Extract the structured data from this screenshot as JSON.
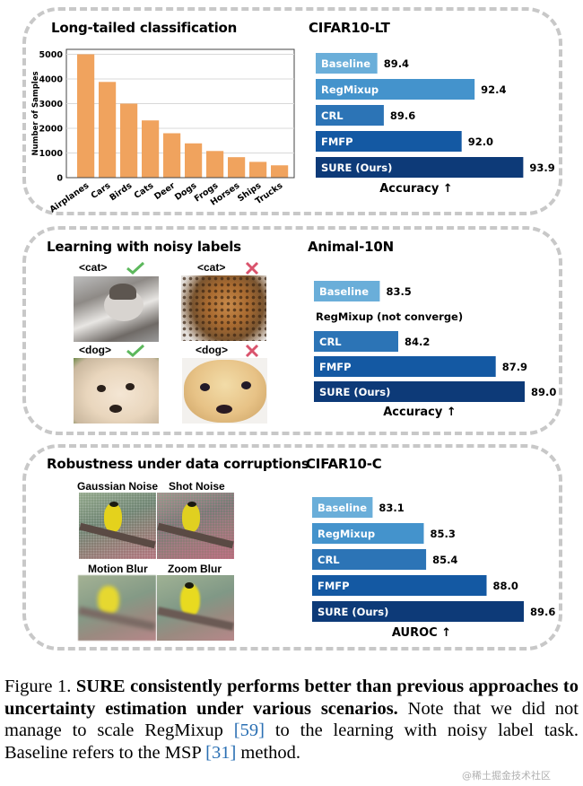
{
  "panels": {
    "long_tailed": {
      "title": "Long-tailed classification",
      "dataset": "CIFAR10-LT",
      "metric": "Accuracy ↑"
    },
    "noisy_labels": {
      "title": "Learning with noisy labels",
      "dataset": "Animal-10N",
      "metric": "Accuracy ↑",
      "examples": [
        {
          "label": "<cat>",
          "status": "correct",
          "status_icon": "check-icon",
          "subject": "tabby cat"
        },
        {
          "label": "<cat>",
          "status": "wrong",
          "status_icon": "cross-icon",
          "subject": "jaguar"
        },
        {
          "label": "<dog>",
          "status": "correct",
          "status_icon": "check-icon",
          "subject": "chihuahua"
        },
        {
          "label": "<dog>",
          "status": "wrong",
          "status_icon": "cross-icon",
          "subject": "muffin"
        }
      ],
      "not_converged_note": "RegMixup (not converge)"
    },
    "corruptions": {
      "title": "Robustness under data corruptions",
      "dataset": "CIFAR10-C",
      "metric": "AUROC ↑",
      "examples": [
        {
          "label": "Gaussian Noise"
        },
        {
          "label": "Shot Noise"
        },
        {
          "label": "Motion Blur"
        },
        {
          "label": "Zoom Blur"
        }
      ]
    }
  },
  "colors": {
    "hist_bar": "#f0a35e",
    "baseline": "#6aaed9",
    "regmixup": "#4493cc",
    "crl": "#2c74b6",
    "fmfp": "#1459a3",
    "sure": "#0d3a78",
    "check": "#5cb85c",
    "cross": "#d9536c",
    "ref_link": "#2a6fb3"
  },
  "chart_data": [
    {
      "type": "bar",
      "title": "Long-tailed classification",
      "categories": [
        "Airplanes",
        "Cars",
        "Birds",
        "Cats",
        "Deer",
        "Dogs",
        "Frogs",
        "Horses",
        "Ships",
        "Trucks"
      ],
      "values": [
        5000,
        3880,
        3000,
        2320,
        1800,
        1390,
        1080,
        830,
        640,
        500
      ],
      "xlabel": "",
      "ylabel": "Number of Samples",
      "yticks": [
        "0",
        "1000",
        "2000",
        "3000",
        "4000",
        "5000"
      ],
      "ylim": [
        0,
        5200
      ],
      "grid": true
    },
    {
      "type": "bar",
      "orientation": "horizontal",
      "title": "CIFAR10-LT",
      "xlabel": "Accuracy ↑",
      "categories": [
        "Baseline",
        "RegMixup",
        "CRL",
        "FMFP",
        "SURE (Ours)"
      ],
      "values": [
        89.4,
        92.4,
        89.6,
        92.0,
        93.9
      ],
      "value_labels": [
        "89.4",
        "92.4",
        "89.6",
        "92.0",
        "93.9"
      ],
      "xlim": [
        87.5,
        94.0
      ]
    },
    {
      "type": "bar",
      "orientation": "horizontal",
      "title": "Animal-10N",
      "xlabel": "Accuracy ↑",
      "categories": [
        "Baseline",
        "RegMixup (not converge)",
        "CRL",
        "FMFP",
        "SURE (Ours)"
      ],
      "values": [
        83.5,
        null,
        84.2,
        87.9,
        89.0
      ],
      "value_labels": [
        "83.5",
        "",
        "84.2",
        "87.9",
        "89.0"
      ],
      "xlim": [
        81.0,
        89.0
      ]
    },
    {
      "type": "bar",
      "orientation": "horizontal",
      "title": "CIFAR10-C",
      "xlabel": "AUROC ↑",
      "categories": [
        "Baseline",
        "RegMixup",
        "CRL",
        "FMFP",
        "SURE (Ours)"
      ],
      "values": [
        83.1,
        85.3,
        85.4,
        88.0,
        89.6
      ],
      "value_labels": [
        "83.1",
        "85.3",
        "85.4",
        "88.0",
        "89.6"
      ],
      "xlim": [
        80.5,
        89.6
      ]
    }
  ],
  "caption": {
    "prefix": "Figure 1. ",
    "bold": "SURE consistently performs better than previous approaches to uncertainty estimation under various scenarios.",
    "text1": " Note that we did not manage to scale RegMixup ",
    "ref1": "[59]",
    "text2": " to the learning with noisy label task. Baseline refers to the MSP ",
    "ref2": "[31]",
    "text3": " method."
  },
  "watermark": "@稀土掘金技术社区"
}
